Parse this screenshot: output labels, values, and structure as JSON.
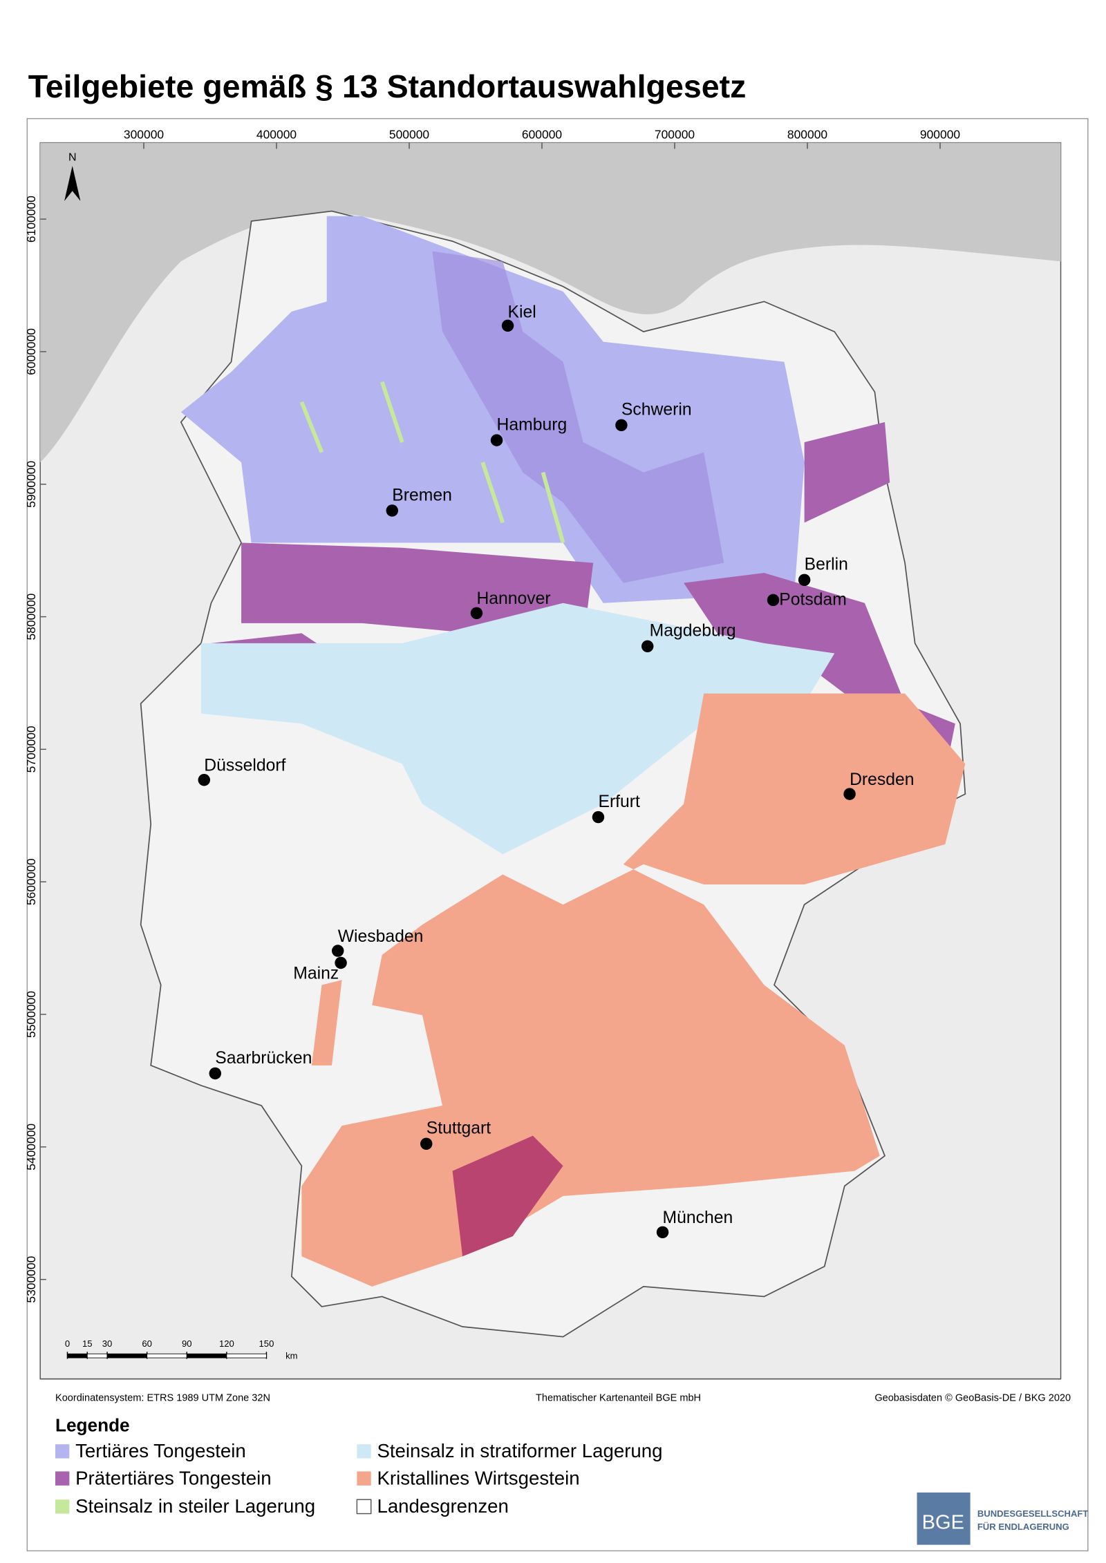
{
  "header": {
    "title": "Teilgebiete gemäß § 13 Standortauswahlgesetz"
  },
  "map": {
    "north": "N",
    "xticks": [
      300000,
      400000,
      500000,
      600000,
      700000,
      800000,
      900000
    ],
    "yticks": [
      5300000,
      5400000,
      5500000,
      5600000,
      5700000,
      5800000,
      5900000,
      6000000,
      6100000
    ],
    "cities": [
      "Kiel",
      "Hamburg",
      "Schwerin",
      "Bremen",
      "Berlin",
      "Potsdam",
      "Hannover",
      "Magdeburg",
      "Düsseldorf",
      "Dresden",
      "Erfurt",
      "Wiesbaden",
      "Mainz",
      "Saarbrücken",
      "Stuttgart",
      "München"
    ],
    "scale_bar": {
      "ticks": [
        0,
        15,
        30,
        60,
        90,
        120,
        150
      ],
      "unit": "km"
    }
  },
  "footer": {
    "crs": "Koordinatensystem: ETRS 1989 UTM Zone 32N",
    "thematic": "Thematischer Kartenanteil BGE mbH",
    "basedata": "Geobasisdaten © GeoBasis-DE / BKG 2020"
  },
  "legend": {
    "title": "Legende",
    "items": [
      {
        "label": "Tertiäres Tongestein",
        "color": "#b4b4f0"
      },
      {
        "label": "Prätertiäres Tongestein",
        "color": "#a862ae"
      },
      {
        "label": "Steinsalz in steiler Lagerung",
        "color": "#c6e89a"
      },
      {
        "label": "Steinsalz in stratiformer Lagerung",
        "color": "#cfe8f6"
      },
      {
        "label": "Kristallines Wirtsgestein",
        "color": "#f4a68c"
      },
      {
        "label": "Landesgrenzen",
        "color": "#ffffff"
      }
    ]
  },
  "logo": {
    "mark": "BGE",
    "line1": "BUNDESGESELLSCHAFT",
    "line2": "FÜR ENDLAGERUNG"
  }
}
